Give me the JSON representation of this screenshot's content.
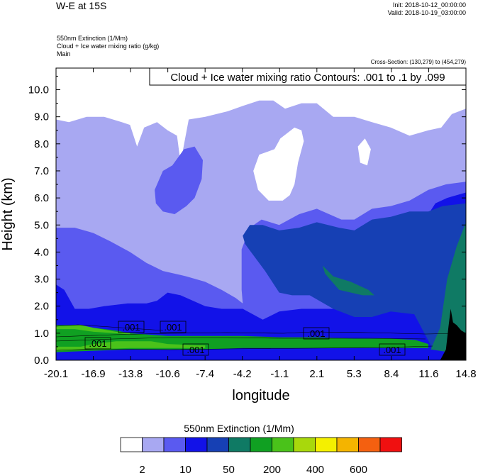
{
  "header": {
    "title": "W-E at 15S",
    "init": "Init: 2018-10-12_00:00:00",
    "valid": "Valid: 2018-10-19_03:00:00",
    "field_line1": "550nm Extinction   (1/Mm)",
    "field_line2": "Cloud + Ice water mixing ratio   (g/kg)",
    "field_line3": "Main",
    "cross_section": "Cross-Section: (130,279) to (454,279)"
  },
  "contour_note": "Cloud + Ice water mixing ratio Contours: .001 to .1 by .099",
  "contour_labels": [
    ".001",
    ".001",
    ".001",
    ".001",
    ".001",
    ".001"
  ],
  "colorbar": {
    "title": "550nm Extinction  (1/Mm)",
    "colors": [
      "#ffffff",
      "#a8a8f2",
      "#5a5af0",
      "#1212e8",
      "#1640b4",
      "#0f7a64",
      "#10a022",
      "#4ac21a",
      "#a8d80c",
      "#f4f000",
      "#f4b400",
      "#f46010",
      "#f01010"
    ],
    "tick_labels": [
      "2",
      "10",
      "50",
      "200",
      "400",
      "600"
    ]
  },
  "chart_data": {
    "type": "heatmap",
    "title": "W-E at 15S",
    "xlabel": "longitude",
    "ylabel": "Height (km)",
    "x_ticks": [
      "-20.1",
      "-16.9",
      "-13.8",
      "-10.6",
      "-7.4",
      "-4.2",
      "-1.1",
      "2.1",
      "5.3",
      "8.4",
      "11.6",
      "14.8"
    ],
    "y_ticks": [
      "0.0",
      "1.0",
      "2.0",
      "3.0",
      "4.0",
      "5.0",
      "6.0",
      "7.0",
      "8.0",
      "9.0",
      "10.0"
    ],
    "xlim": [
      -20.1,
      14.8
    ],
    "ylim": [
      0,
      10.8
    ],
    "value_levels": [
      2,
      10,
      50,
      200,
      400,
      600
    ],
    "regions": [
      {
        "level": 1,
        "polygon": [
          [
            -20.1,
            8.9
          ],
          [
            -19.0,
            8.8
          ],
          [
            -17.5,
            9.0
          ],
          [
            -16.0,
            9.0
          ],
          [
            -14.5,
            8.8
          ],
          [
            -13.8,
            8.7
          ],
          [
            -13.2,
            7.9
          ],
          [
            -12.6,
            8.6
          ],
          [
            -11.5,
            8.8
          ],
          [
            -10.6,
            8.5
          ],
          [
            -9.8,
            8.3
          ],
          [
            -9.5,
            7.3
          ],
          [
            -8.8,
            8.9
          ],
          [
            -7.4,
            9.0
          ],
          [
            -5.5,
            9.2
          ],
          [
            -4.2,
            9.4
          ],
          [
            -2.8,
            9.6
          ],
          [
            -1.6,
            9.6
          ],
          [
            -0.6,
            9.3
          ],
          [
            0.8,
            9.5
          ],
          [
            2.1,
            9.5
          ],
          [
            3.5,
            9.0
          ],
          [
            5.3,
            9.0
          ],
          [
            6.8,
            8.8
          ],
          [
            8.4,
            8.6
          ],
          [
            10.0,
            8.3
          ],
          [
            11.6,
            8.5
          ],
          [
            12.7,
            8.6
          ],
          [
            13.6,
            9.1
          ],
          [
            14.8,
            9.3
          ],
          [
            14.8,
            0.0
          ],
          [
            -20.1,
            0.0
          ]
        ]
      },
      {
        "level": 2,
        "polygon": [
          [
            -20.1,
            4.9
          ],
          [
            -18.5,
            4.9
          ],
          [
            -16.9,
            4.7
          ],
          [
            -15.5,
            4.4
          ],
          [
            -13.8,
            4.0
          ],
          [
            -12.4,
            3.6
          ],
          [
            -11.0,
            3.3
          ],
          [
            -9.0,
            3.1
          ],
          [
            -7.4,
            2.9
          ],
          [
            -6.0,
            2.6
          ],
          [
            -4.8,
            2.3
          ],
          [
            -4.2,
            2.1
          ],
          [
            -4.3,
            2.6
          ],
          [
            -4.3,
            4.1
          ],
          [
            -3.6,
            4.9
          ],
          [
            -2.6,
            5.2
          ],
          [
            -1.1,
            5.0
          ],
          [
            0.6,
            5.4
          ],
          [
            2.1,
            5.6
          ],
          [
            4.2,
            5.2
          ],
          [
            5.3,
            5.2
          ],
          [
            6.8,
            5.6
          ],
          [
            8.4,
            5.7
          ],
          [
            10.0,
            5.9
          ],
          [
            11.6,
            6.3
          ],
          [
            13.1,
            6.5
          ],
          [
            14.8,
            6.6
          ],
          [
            14.8,
            0.0
          ],
          [
            -20.1,
            0.0
          ]
        ]
      },
      {
        "level": 2,
        "polygon": [
          [
            -11.7,
            6.3
          ],
          [
            -11.0,
            7.0
          ],
          [
            -10.2,
            7.2
          ],
          [
            -9.2,
            7.8
          ],
          [
            -8.3,
            7.9
          ],
          [
            -7.6,
            7.4
          ],
          [
            -7.7,
            6.7
          ],
          [
            -8.3,
            6.0
          ],
          [
            -9.0,
            5.7
          ],
          [
            -10.0,
            5.4
          ],
          [
            -11.0,
            5.5
          ],
          [
            -11.6,
            5.8
          ]
        ]
      },
      {
        "level": 3,
        "polygon": [
          [
            -20.1,
            2.8
          ],
          [
            -19.4,
            2.6
          ],
          [
            -18.5,
            1.9
          ],
          [
            -17.3,
            1.9
          ],
          [
            -16.0,
            2.0
          ],
          [
            -14.0,
            2.1
          ],
          [
            -12.4,
            2.1
          ],
          [
            -11.5,
            2.2
          ],
          [
            -10.6,
            2.5
          ],
          [
            -9.5,
            2.4
          ],
          [
            -7.4,
            2.0
          ],
          [
            -6.0,
            1.9
          ],
          [
            -4.2,
            1.9
          ],
          [
            -2.5,
            1.5
          ],
          [
            -1.1,
            1.8
          ],
          [
            0.8,
            1.9
          ],
          [
            2.1,
            1.9
          ],
          [
            3.8,
            1.9
          ],
          [
            5.3,
            2.0
          ],
          [
            6.8,
            2.2
          ],
          [
            8.4,
            2.5
          ],
          [
            10.0,
            2.8
          ],
          [
            11.2,
            4.5
          ],
          [
            11.6,
            5.4
          ],
          [
            12.2,
            5.8
          ],
          [
            13.2,
            6.0
          ],
          [
            14.8,
            6.2
          ],
          [
            14.8,
            0.0
          ],
          [
            -20.1,
            0.0
          ]
        ]
      },
      {
        "level": 4,
        "polygon": [
          [
            -4.2,
            4.6
          ],
          [
            -3.6,
            5.0
          ],
          [
            -2.5,
            5.0
          ],
          [
            -1.1,
            4.8
          ],
          [
            0.6,
            4.9
          ],
          [
            2.1,
            5.1
          ],
          [
            4.0,
            4.9
          ],
          [
            5.3,
            4.8
          ],
          [
            6.8,
            5.2
          ],
          [
            8.4,
            5.3
          ],
          [
            10.0,
            5.5
          ],
          [
            11.6,
            5.5
          ],
          [
            12.8,
            5.7
          ],
          [
            14.8,
            5.8
          ],
          [
            14.8,
            0.2
          ],
          [
            12.0,
            0.4
          ],
          [
            10.4,
            1.7
          ],
          [
            8.4,
            1.8
          ],
          [
            6.8,
            1.6
          ],
          [
            5.3,
            1.6
          ],
          [
            3.5,
            1.9
          ],
          [
            1.5,
            2.4
          ],
          [
            0.0,
            2.4
          ],
          [
            -1.1,
            2.5
          ],
          [
            -2.3,
            3.3
          ],
          [
            -3.5,
            4.0
          ],
          [
            -4.0,
            4.3
          ]
        ]
      },
      {
        "level": 5,
        "polygon": [
          [
            11.8,
            0.4
          ],
          [
            12.6,
            1.2
          ],
          [
            13.2,
            3.0
          ],
          [
            14.0,
            4.2
          ],
          [
            14.8,
            5.1
          ],
          [
            14.8,
            0.2
          ]
        ]
      },
      {
        "level": 5,
        "polygon": [
          [
            2.6,
            3.5
          ],
          [
            3.5,
            3.1
          ],
          [
            5.0,
            2.9
          ],
          [
            6.5,
            2.6
          ],
          [
            7.0,
            2.4
          ],
          [
            6.0,
            2.4
          ],
          [
            4.0,
            2.6
          ],
          [
            2.8,
            3.2
          ]
        ]
      },
      {
        "level": 6,
        "polygon": [
          [
            -20.1,
            1.3
          ],
          [
            -18.5,
            1.3
          ],
          [
            -16.9,
            1.2
          ],
          [
            -15.0,
            1.1
          ],
          [
            -13.8,
            1.0
          ],
          [
            -10.6,
            0.9
          ],
          [
            -7.4,
            0.9
          ],
          [
            -4.2,
            0.9
          ],
          [
            -1.1,
            0.85
          ],
          [
            2.1,
            0.85
          ],
          [
            5.3,
            0.8
          ],
          [
            8.4,
            0.8
          ],
          [
            10.5,
            0.75
          ],
          [
            11.6,
            0.6
          ],
          [
            11.6,
            0.45
          ],
          [
            8.4,
            0.45
          ],
          [
            5.3,
            0.45
          ],
          [
            2.1,
            0.45
          ],
          [
            -1.1,
            0.45
          ],
          [
            -4.2,
            0.45
          ],
          [
            -7.4,
            0.4
          ],
          [
            -10.6,
            0.4
          ],
          [
            -13.8,
            0.4
          ],
          [
            -16.9,
            0.35
          ],
          [
            -20.1,
            0.3
          ]
        ]
      },
      {
        "level": 7,
        "polygon": [
          [
            -20.1,
            0.5
          ],
          [
            -18.0,
            0.5
          ],
          [
            -16.9,
            0.6
          ],
          [
            -15.0,
            0.7
          ],
          [
            -13.8,
            0.7
          ],
          [
            -12.0,
            0.7
          ],
          [
            -10.6,
            0.6
          ],
          [
            -8.0,
            0.55
          ],
          [
            -7.4,
            0.55
          ],
          [
            -7.4,
            0.45
          ],
          [
            -10.6,
            0.45
          ],
          [
            -13.8,
            0.45
          ],
          [
            -16.9,
            0.4
          ],
          [
            -20.1,
            0.35
          ]
        ]
      },
      {
        "level": 7,
        "polygon": [
          [
            -20.1,
            1.25
          ],
          [
            -18.0,
            1.3
          ],
          [
            -16.9,
            1.2
          ],
          [
            -15.0,
            1.05
          ],
          [
            -13.8,
            1.0
          ],
          [
            -13.8,
            0.95
          ],
          [
            -15.0,
            1.0
          ],
          [
            -16.9,
            1.05
          ],
          [
            -18.5,
            1.15
          ],
          [
            -20.1,
            1.15
          ]
        ]
      }
    ],
    "terrain": [
      [
        12.6,
        0.0
      ],
      [
        13.1,
        0.4
      ],
      [
        13.3,
        1.2
      ],
      [
        13.5,
        1.9
      ],
      [
        13.7,
        1.4
      ],
      [
        14.0,
        1.3
      ],
      [
        14.4,
        1.1
      ],
      [
        14.8,
        1.0
      ],
      [
        14.8,
        0.0
      ]
    ],
    "white_patches": [
      [
        [
          -3.3,
          7.0
        ],
        [
          -2.8,
          7.6
        ],
        [
          -1.5,
          7.8
        ],
        [
          -1.0,
          8.2
        ],
        [
          0.2,
          8.6
        ],
        [
          0.8,
          8.5
        ],
        [
          1.0,
          8.1
        ],
        [
          0.5,
          7.3
        ],
        [
          0.2,
          6.5
        ],
        [
          -0.2,
          6.1
        ],
        [
          -0.8,
          5.9
        ],
        [
          -2.0,
          5.9
        ],
        [
          -2.9,
          6.3
        ]
      ],
      [
        [
          5.6,
          7.9
        ],
        [
          6.2,
          8.2
        ],
        [
          6.7,
          7.8
        ],
        [
          6.4,
          7.2
        ],
        [
          5.8,
          7.3
        ]
      ]
    ]
  }
}
